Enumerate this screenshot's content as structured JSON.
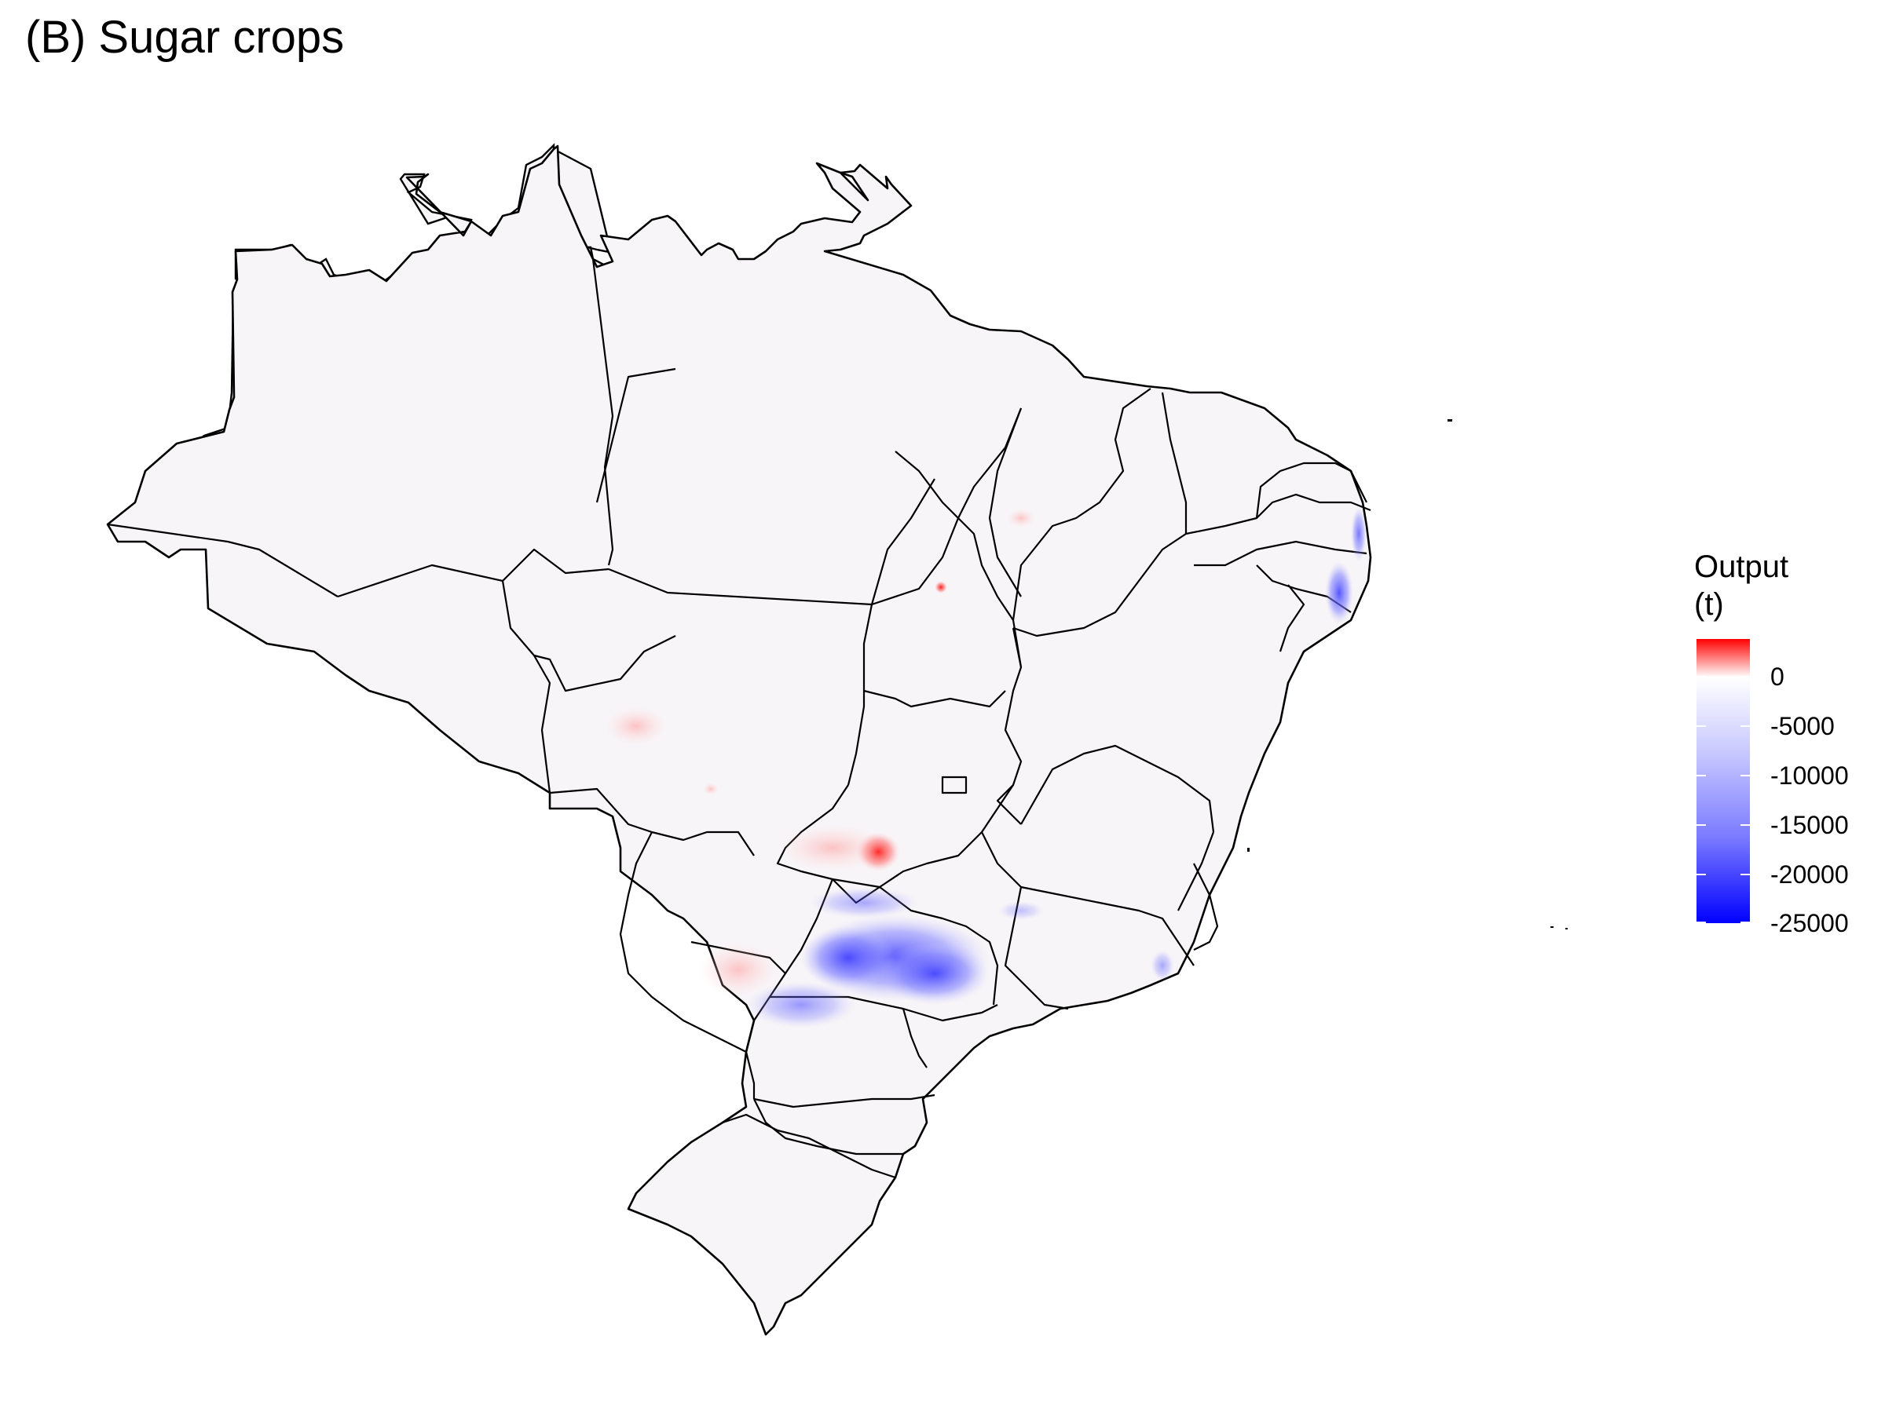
{
  "title": "(B) Sugar crops",
  "legend": {
    "title_line1": "Output",
    "title_line2": "(t)",
    "ticks": [
      "0",
      "-5000",
      "-10000",
      "-15000",
      "-20000",
      "-25000"
    ],
    "colors": {
      "high": "#ff0000",
      "mid": "#ffffff",
      "low": "#0000ff"
    }
  },
  "map": {
    "region": "Brazil",
    "boundaries": "states"
  }
}
